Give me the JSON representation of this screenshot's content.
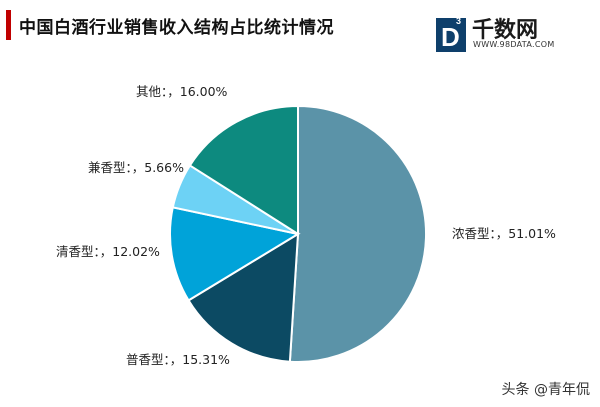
{
  "header": {
    "title": "中国白酒行业销售收入结构占比统计情况",
    "accent_color": "#c00000"
  },
  "logo": {
    "name": "千数网",
    "url": "WWW.98DATA.COM",
    "mark_letter": "D",
    "mark_superscript": "3",
    "mark_color": "#0e3f6b"
  },
  "chart_data": {
    "type": "pie",
    "title": "",
    "start_angle_deg": 0,
    "direction": "clockwise",
    "slices": [
      {
        "label": "浓香型：，51.01%",
        "category": "浓香型",
        "value": 51.01,
        "color": "#5b93a8"
      },
      {
        "label": "普香型：，15.31%",
        "category": "普香型",
        "value": 15.31,
        "color": "#0c4a63"
      },
      {
        "label": "清香型：，12.02%",
        "category": "清香型",
        "value": 12.02,
        "color": "#00a3d9"
      },
      {
        "label": "兼香型：，5.66%",
        "category": "兼香型",
        "value": 5.66,
        "color": "#6dd2f5"
      },
      {
        "label": "其他：，16.00%",
        "category": "其他",
        "value": 16.0,
        "color": "#0d8a7f"
      }
    ]
  },
  "watermark": {
    "text": "头条 @青年侃"
  }
}
